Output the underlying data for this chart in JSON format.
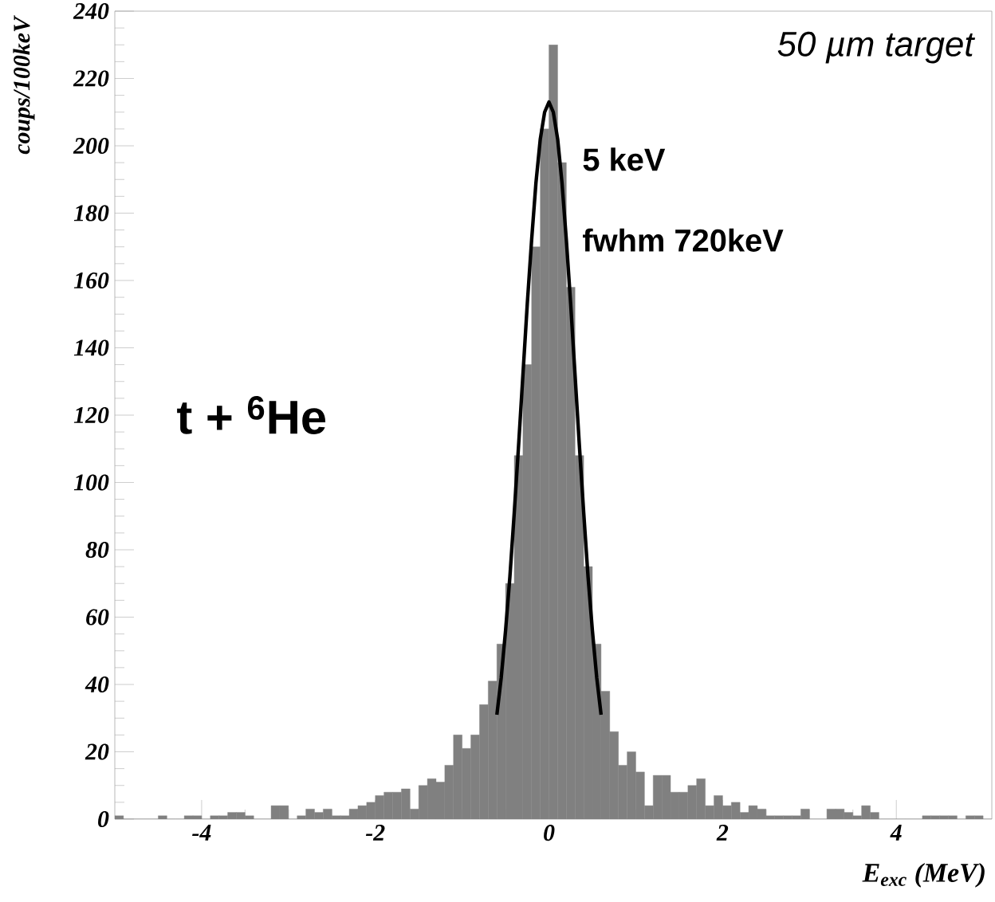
{
  "chart_data": {
    "type": "histogram",
    "xlabel": "E$_{exc}$ (MeV)",
    "ylabel": "coups/100keV",
    "xlim": [
      -5,
      5.1
    ],
    "ylim": [
      0,
      240
    ],
    "xticks": [
      -4,
      -2,
      0,
      2,
      4
    ],
    "yticks": [
      0,
      20,
      40,
      60,
      80,
      100,
      120,
      140,
      160,
      180,
      200,
      220,
      240
    ],
    "annotations": [
      "50 µm target",
      "5 keV",
      "fwhm 720keV",
      "t + $^{6}$He"
    ],
    "color": "#808080",
    "bins": [
      -5.0,
      -4.9,
      -4.8,
      -4.7,
      -4.6,
      -4.5,
      -4.4,
      -4.3,
      -4.2,
      -4.1,
      -4.0,
      -3.9,
      -3.8,
      -3.7,
      -3.6,
      -3.5,
      -3.4,
      -3.3,
      -3.2,
      -3.1,
      -3.0,
      -2.9,
      -2.8,
      -2.7,
      -2.6,
      -2.5,
      -2.4,
      -2.3,
      -2.2,
      -2.1,
      -2.0,
      -1.9,
      -1.8,
      -1.7,
      -1.6,
      -1.5,
      -1.4,
      -1.3,
      -1.2,
      -1.1,
      -1.0,
      -0.9,
      -0.8,
      -0.7,
      -0.6,
      -0.5,
      -0.4,
      -0.3,
      -0.2,
      -0.1,
      0.0,
      0.1,
      0.2,
      0.3,
      0.4,
      0.5,
      0.6,
      0.7,
      0.8,
      0.9,
      1.0,
      1.1,
      1.2,
      1.3,
      1.4,
      1.5,
      1.6,
      1.7,
      1.8,
      1.9,
      2.0,
      2.1,
      2.2,
      2.3,
      2.4,
      2.5,
      2.6,
      2.7,
      2.8,
      2.9,
      3.0,
      3.1,
      3.2,
      3.3,
      3.4,
      3.5,
      3.6,
      3.7,
      3.8,
      3.9,
      4.0,
      4.1,
      4.2,
      4.3,
      4.4,
      4.5,
      4.6,
      4.7,
      4.8,
      4.9,
      5.0,
      5.1
    ],
    "values": [
      1,
      0,
      0,
      0,
      0,
      1,
      0,
      0,
      1,
      1,
      0,
      1,
      1,
      2,
      2,
      1,
      0,
      0,
      4,
      4,
      0,
      1,
      3,
      2,
      3,
      1,
      1,
      3,
      4,
      5,
      7,
      8,
      8,
      9,
      3,
      10,
      12,
      11,
      16,
      25,
      21,
      25,
      34,
      41,
      52,
      70,
      108,
      135,
      170,
      205,
      230,
      195,
      158,
      108,
      75,
      52,
      38,
      26,
      16,
      20,
      14,
      4,
      13,
      13,
      8,
      8,
      10,
      12,
      4,
      7,
      4,
      5,
      2,
      4,
      3,
      1,
      1,
      1,
      1,
      3,
      0,
      0,
      3,
      3,
      2,
      1,
      4,
      2,
      0,
      0,
      0,
      0,
      0,
      1,
      1,
      1,
      1,
      0,
      1,
      1,
      0
    ],
    "series": [
      {
        "type": "line",
        "color": "#000000",
        "x": [
          -0.6,
          -0.55,
          -0.5,
          -0.45,
          -0.4,
          -0.35,
          -0.3,
          -0.25,
          -0.2,
          -0.15,
          -0.1,
          -0.05,
          0,
          0.05,
          0.1,
          0.15,
          0.2,
          0.25,
          0.3,
          0.35,
          0.4,
          0.45,
          0.5,
          0.55,
          0.6
        ],
        "values": [
          31,
          42,
          56,
          72,
          91,
          111,
          132,
          153,
          172,
          189,
          202,
          210,
          213,
          210,
          202,
          189,
          172,
          153,
          132,
          111,
          91,
          72,
          56,
          42,
          31
        ]
      }
    ]
  }
}
